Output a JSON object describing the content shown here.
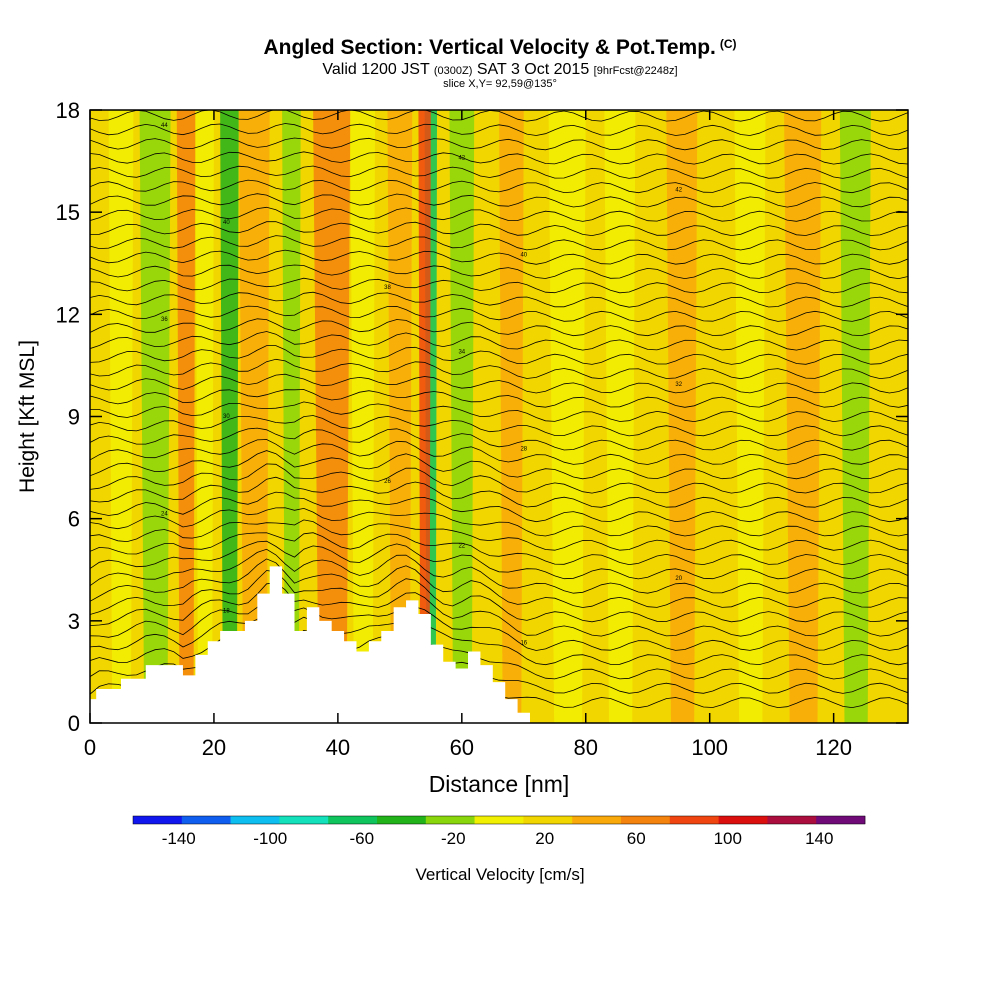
{
  "title": {
    "main": "Angled Section: Vertical Velocity & Pot.Temp.",
    "copyright": "(C)",
    "valid_prefix": "Valid 1200 JST",
    "valid_utc": "(0300Z)",
    "valid_date": "SAT 3 Oct 2015",
    "forecast": "[9hrFcst@2248z]",
    "slice": "slice X,Y= 92,59@135°"
  },
  "chart_data": {
    "type": "heatmap",
    "xlabel": "Distance [nm]",
    "ylabel": "Height [Kft MSL]",
    "xlim": [
      0,
      132
    ],
    "ylim": [
      0,
      18
    ],
    "x_ticks": [
      0,
      20,
      40,
      60,
      80,
      100,
      120
    ],
    "y_ticks": [
      0,
      3,
      6,
      9,
      12,
      15,
      18
    ],
    "colorbar": {
      "label": "Vertical Velocity [cm/s]",
      "range": [
        -160,
        160
      ],
      "bins": 16,
      "tick_values": [
        -140,
        -100,
        -60,
        -20,
        20,
        60,
        100,
        140
      ],
      "tick_labels": [
        "-140",
        "-100",
        "-60",
        "-20",
        "20",
        "60",
        "100",
        "140"
      ],
      "colors": [
        "#0f16ee",
        "#0f5ef0",
        "#0dbff0",
        "#13e1bb",
        "#0fc45c",
        "#22b31b",
        "#8ad60c",
        "#f2f002",
        "#f2d600",
        "#f9a90a",
        "#f4830d",
        "#f04510",
        "#dc0f0f",
        "#aa0d3e",
        "#6f0a78"
      ]
    },
    "vertical_velocity_columns": [
      {
        "x": 3,
        "w": 4,
        "value": -20
      },
      {
        "x": 8,
        "w": 5,
        "value": -30
      },
      {
        "x": 14,
        "w": 3,
        "value": 40
      },
      {
        "x": 17,
        "w": 3,
        "value": -20
      },
      {
        "x": 21,
        "w": 3,
        "value": -60
      },
      {
        "x": 24,
        "w": 5,
        "value": 30
      },
      {
        "x": 31,
        "w": 3,
        "value": -40
      },
      {
        "x": 36,
        "w": 6,
        "value": 55
      },
      {
        "x": 42,
        "w": 4,
        "value": -20
      },
      {
        "x": 48,
        "w": 4,
        "value": 35
      },
      {
        "x": 54,
        "w": 2,
        "value": -70
      },
      {
        "x": 53,
        "w": 2,
        "value": 60
      },
      {
        "x": 58,
        "w": 4,
        "value": -30
      },
      {
        "x": 66,
        "w": 4,
        "value": 30
      },
      {
        "x": 74,
        "w": 6,
        "value": -20
      },
      {
        "x": 83,
        "w": 5,
        "value": -20
      },
      {
        "x": 93,
        "w": 5,
        "value": 30
      },
      {
        "x": 104,
        "w": 5,
        "value": -20
      },
      {
        "x": 112,
        "w": 6,
        "value": 30
      },
      {
        "x": 121,
        "w": 5,
        "value": -30
      }
    ],
    "terrain_profile": {
      "x": [
        0,
        1,
        5,
        9,
        13,
        15,
        17,
        19,
        21,
        25,
        27,
        29,
        31,
        33,
        35,
        37,
        39,
        41,
        43,
        45,
        47,
        49,
        51,
        53,
        55,
        57,
        59,
        61,
        63,
        65,
        67,
        69,
        71
      ],
      "height": [
        0.7,
        1.0,
        1.3,
        1.7,
        1.7,
        1.4,
        2.0,
        2.4,
        2.7,
        3.0,
        3.8,
        4.6,
        3.8,
        2.7,
        3.4,
        3.0,
        2.7,
        2.4,
        2.1,
        2.4,
        2.7,
        3.4,
        3.6,
        3.2,
        2.3,
        1.8,
        1.6,
        2.1,
        1.7,
        1.2,
        0.7,
        0.3,
        0.0
      ]
    },
    "pot_temp_contour_labels": [
      "44",
      "42",
      "42",
      "40",
      "40",
      "38",
      "36",
      "34",
      "32",
      "30",
      "28",
      "26",
      "24",
      "22",
      "20",
      "18",
      "16",
      "14"
    ]
  }
}
